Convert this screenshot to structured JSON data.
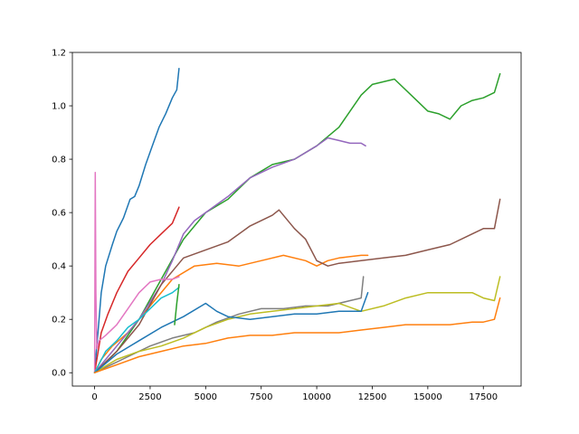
{
  "chart_data": {
    "type": "line",
    "title": "",
    "xlabel": "",
    "ylabel": "",
    "xlim": [
      -1000,
      19200
    ],
    "ylim": [
      -0.05,
      1.2
    ],
    "grid": false,
    "x_ticks": [
      0,
      2500,
      5000,
      7500,
      10000,
      12500,
      15000,
      17500
    ],
    "x_tick_labels": [
      "0",
      "2500",
      "5000",
      "7500",
      "10000",
      "12500",
      "15000",
      "17500"
    ],
    "y_ticks": [
      0.0,
      0.2,
      0.4,
      0.6,
      0.8,
      1.0,
      1.2
    ],
    "y_tick_labels": [
      "0.0",
      "0.2",
      "0.4",
      "0.6",
      "0.8",
      "1.0",
      "1.2"
    ],
    "series": [
      {
        "color": "#1f77b4",
        "x": [
          0,
          100,
          200,
          300,
          500,
          800,
          1000,
          1300,
          1600,
          1800,
          2000,
          2300,
          2600,
          2900,
          3200,
          3500,
          3700,
          3800
        ],
        "y": [
          0.0,
          0.1,
          0.2,
          0.3,
          0.4,
          0.48,
          0.53,
          0.58,
          0.65,
          0.66,
          0.7,
          0.78,
          0.85,
          0.92,
          0.97,
          1.03,
          1.06,
          1.14
        ]
      },
      {
        "color": "#ff7f0e",
        "x": [
          0,
          300,
          800,
          1500,
          2500,
          3500,
          4500,
          5500,
          6500,
          7500,
          8500,
          9500,
          10000,
          10500,
          11000,
          12000,
          12300
        ],
        "y": [
          0.0,
          0.05,
          0.1,
          0.15,
          0.25,
          0.35,
          0.4,
          0.41,
          0.4,
          0.42,
          0.44,
          0.42,
          0.4,
          0.42,
          0.43,
          0.44,
          0.44
        ]
      },
      {
        "color": "#2ca02c",
        "x": [
          0,
          1000,
          2000,
          3000,
          4000,
          5000,
          6000,
          7000,
          8000,
          9000,
          10000,
          11000,
          12000,
          12500,
          13500,
          14500,
          15000,
          15500,
          16000,
          16500,
          17000,
          17500,
          18000,
          18250
        ],
        "y": [
          0.0,
          0.08,
          0.2,
          0.35,
          0.5,
          0.6,
          0.65,
          0.73,
          0.78,
          0.8,
          0.85,
          0.92,
          1.04,
          1.08,
          1.1,
          1.02,
          0.98,
          0.97,
          0.95,
          1.0,
          1.02,
          1.03,
          1.05,
          1.12
        ]
      },
      {
        "color": "#d62728",
        "x": [
          0,
          300,
          600,
          1000,
          1500,
          2000,
          2500,
          3000,
          3500,
          3800
        ],
        "y": [
          0.0,
          0.15,
          0.22,
          0.3,
          0.38,
          0.43,
          0.48,
          0.52,
          0.56,
          0.62
        ]
      },
      {
        "color": "#9467bd",
        "x": [
          0,
          500,
          1000,
          2000,
          3000,
          3500,
          4000,
          4500,
          5000,
          6000,
          7000,
          8000,
          9000,
          10000,
          10500,
          11000,
          11500,
          12000,
          12200
        ],
        "y": [
          0.0,
          0.05,
          0.1,
          0.2,
          0.33,
          0.42,
          0.52,
          0.57,
          0.6,
          0.66,
          0.73,
          0.77,
          0.8,
          0.85,
          0.88,
          0.87,
          0.86,
          0.86,
          0.85
        ]
      },
      {
        "color": "#8c564b",
        "x": [
          0,
          1000,
          2000,
          3000,
          4000,
          5000,
          6000,
          7000,
          8000,
          8300,
          9000,
          9500,
          10000,
          10500,
          11000,
          12000,
          13000,
          14000,
          15000,
          16000,
          17000,
          17500,
          18000,
          18250
        ],
        "y": [
          0.0,
          0.08,
          0.18,
          0.33,
          0.43,
          0.46,
          0.49,
          0.55,
          0.59,
          0.61,
          0.54,
          0.5,
          0.42,
          0.4,
          0.41,
          0.42,
          0.43,
          0.44,
          0.46,
          0.48,
          0.52,
          0.54,
          0.54,
          0.65
        ]
      },
      {
        "color": "#e377c2",
        "x": [
          0,
          30,
          60,
          100,
          200,
          500,
          1000,
          1500,
          2000,
          2500,
          3000,
          3500,
          3800
        ],
        "y": [
          0.0,
          0.75,
          0.3,
          0.09,
          0.12,
          0.14,
          0.18,
          0.24,
          0.3,
          0.34,
          0.35,
          0.35,
          0.36
        ]
      },
      {
        "color": "#7f7f7f",
        "x": [
          0,
          500,
          1500,
          2500,
          3500,
          4500,
          5500,
          6500,
          7500,
          8500,
          9500,
          10500,
          11500,
          12000,
          12100
        ],
        "y": [
          0.0,
          0.02,
          0.06,
          0.1,
          0.13,
          0.15,
          0.19,
          0.22,
          0.24,
          0.24,
          0.25,
          0.25,
          0.27,
          0.28,
          0.36
        ]
      },
      {
        "color": "#bcbd22",
        "x": [
          0,
          1000,
          2000,
          3000,
          4000,
          5000,
          6000,
          7000,
          8000,
          9000,
          10000,
          11000,
          12000,
          13000,
          14000,
          15000,
          16000,
          17000,
          17500,
          18000,
          18250
        ],
        "y": [
          0.0,
          0.05,
          0.08,
          0.1,
          0.13,
          0.17,
          0.2,
          0.22,
          0.23,
          0.24,
          0.25,
          0.26,
          0.23,
          0.25,
          0.28,
          0.3,
          0.3,
          0.3,
          0.28,
          0.27,
          0.36
        ]
      },
      {
        "color": "#17becf",
        "x": [
          0,
          500,
          1000,
          1500,
          2000,
          2500,
          3000,
          3500,
          3800
        ],
        "y": [
          0.0,
          0.08,
          0.12,
          0.17,
          0.2,
          0.24,
          0.28,
          0.3,
          0.32
        ]
      },
      {
        "color": "#1f77b4",
        "x": [
          0,
          1000,
          2000,
          3000,
          4000,
          5000,
          5500,
          6000,
          7000,
          8000,
          9000,
          10000,
          11000,
          12000,
          12300
        ],
        "y": [
          0.0,
          0.07,
          0.12,
          0.17,
          0.21,
          0.26,
          0.23,
          0.21,
          0.2,
          0.21,
          0.22,
          0.22,
          0.23,
          0.23,
          0.3
        ]
      },
      {
        "color": "#ff7f0e",
        "x": [
          0,
          1000,
          2000,
          3000,
          4000,
          5000,
          6000,
          7000,
          8000,
          9000,
          10000,
          11000,
          12000,
          13000,
          14000,
          15000,
          16000,
          17000,
          17500,
          18000,
          18250
        ],
        "y": [
          0.0,
          0.03,
          0.06,
          0.08,
          0.1,
          0.11,
          0.13,
          0.14,
          0.14,
          0.15,
          0.15,
          0.15,
          0.16,
          0.17,
          0.18,
          0.18,
          0.18,
          0.19,
          0.19,
          0.2,
          0.28
        ]
      },
      {
        "color": "#2ca02c",
        "x": [
          3600,
          3700,
          3800
        ],
        "y": [
          0.18,
          0.26,
          0.33
        ]
      }
    ]
  }
}
